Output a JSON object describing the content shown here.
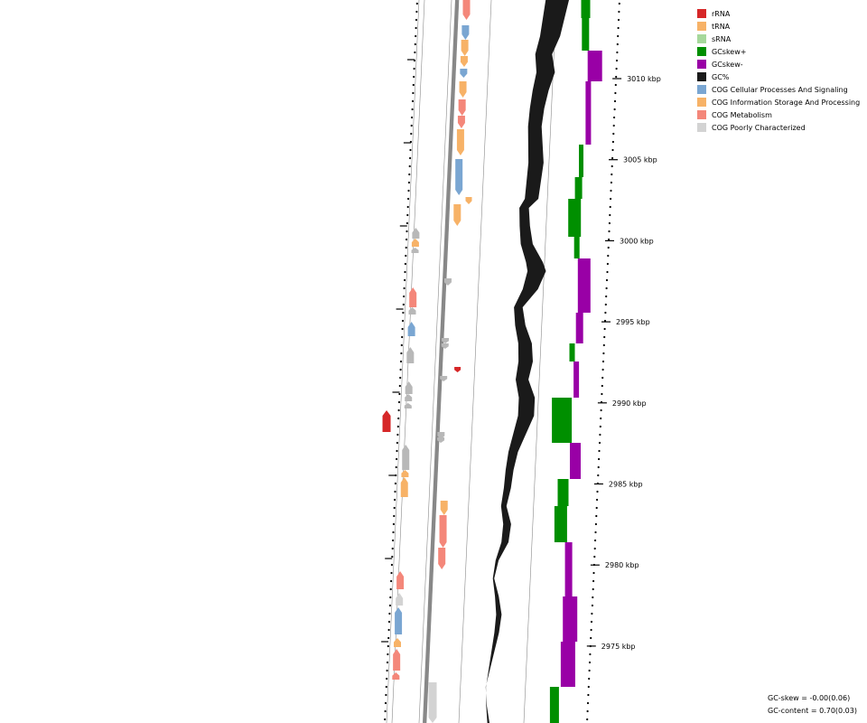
{
  "colors": {
    "rRNA": "#d62728",
    "tRNA": "#f7b267",
    "sRNA": "#a6d89b",
    "GCskew_pos": "#008f00",
    "GCskew_neg": "#9900a6",
    "GC": "#1a1a1a",
    "cog_cellular": "#7aa6d2",
    "cog_info": "#f7b267",
    "cog_metabolism": "#f4877a",
    "cog_poor": "#d3d3d3",
    "cog_poor_dark": "#b8b8b8"
  },
  "legend": [
    {
      "label": "rRNA",
      "color": "#d62728"
    },
    {
      "label": "tRNA",
      "color": "#f7b267"
    },
    {
      "label": "sRNA",
      "color": "#a6d89b"
    },
    {
      "label": "GCskew+",
      "color": "#008f00"
    },
    {
      "label": "GCskew-",
      "color": "#9900a6"
    },
    {
      "label": "GC%",
      "color": "#1a1a1a"
    },
    {
      "label": "COG Cellular Processes And Signaling",
      "color": "#7aa6d2"
    },
    {
      "label": "COG Information Storage And Processing",
      "color": "#f7b267"
    },
    {
      "label": "COG Metabolism",
      "color": "#f4877a"
    },
    {
      "label": "COG Poorly Characterized",
      "color": "#d3d3d3"
    }
  ],
  "ticks": [
    "3010 kbp",
    "3005 kbp",
    "3000 kbp",
    "2995 kbp",
    "2990 kbp",
    "2985 kbp",
    "2980 kbp",
    "2975 kbp"
  ],
  "stats": {
    "gc_skew": "GC-skew = -0.00(0.06)",
    "gc_content": "GC-content = 0.70(0.03)"
  }
}
